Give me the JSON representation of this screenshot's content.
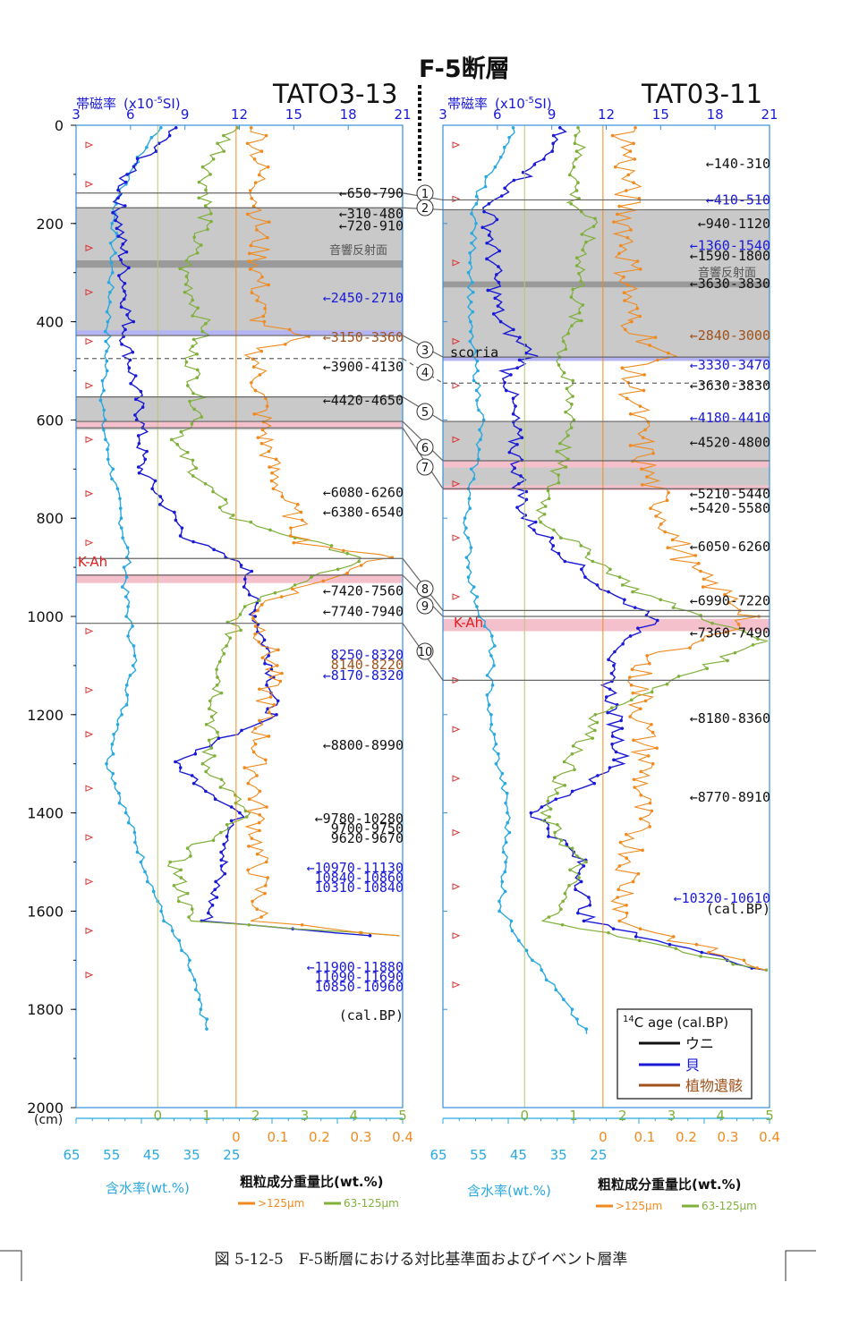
{
  "fault_title": "F-5断層",
  "cores": [
    {
      "name": "TATO3-13",
      "reflector_label": "音響反射面",
      "kah_label": "K-Ah",
      "ages": [
        {
          "text": "←310-480",
          "color": "#111111",
          "depth": 180
        },
        {
          "text": "←650-790",
          "color": "#111111",
          "depth": 138
        },
        {
          "text": "←720-910",
          "color": "#111111",
          "depth": 205
        },
        {
          "text": "←2450-2710",
          "color": "#1a1ad6",
          "depth": 352
        },
        {
          "text": "←3150-3360",
          "color": "#a0521c",
          "depth": 432
        },
        {
          "text": "←3900-4130",
          "color": "#111111",
          "depth": 492
        },
        {
          "text": "←4420-4650",
          "color": "#111111",
          "depth": 560
        },
        {
          "text": "←6080-6260",
          "color": "#111111",
          "depth": 748
        },
        {
          "text": "←6380-6540",
          "color": "#111111",
          "depth": 788
        },
        {
          "text": "←7420-7560",
          "color": "#111111",
          "depth": 948
        },
        {
          "text": "←7740-7940",
          "color": "#111111",
          "depth": 990
        },
        {
          "text": "8250-8320",
          "color": "#1a1ad6",
          "depth": 1078
        },
        {
          "text": "8140-8220",
          "color": "#a0521c",
          "depth": 1098
        },
        {
          "text": "←8170-8320",
          "color": "#1a1ad6",
          "depth": 1120
        },
        {
          "text": "←8800-8990",
          "color": "#111111",
          "depth": 1262
        },
        {
          "text": "←9780-10280",
          "color": "#111111",
          "depth": 1412
        },
        {
          "text": "9700-9750",
          "color": "#111111",
          "depth": 1432
        },
        {
          "text": "9620-9670",
          "color": "#111111",
          "depth": 1452
        },
        {
          "text": "←10970-11130",
          "color": "#1a1ad6",
          "depth": 1512
        },
        {
          "text": "10840-10860",
          "color": "#1a1ad6",
          "depth": 1532
        },
        {
          "text": "10310-10840",
          "color": "#1a1ad6",
          "depth": 1552
        },
        {
          "text": "←11900-11880",
          "color": "#1a1ad6",
          "depth": 1714
        },
        {
          "text": "11090-11690",
          "color": "#1a1ad6",
          "depth": 1734
        },
        {
          "text": "10850-10960",
          "color": "#1a1ad6",
          "depth": 1754
        },
        {
          "text": "(cal.BP)",
          "color": "#111111",
          "depth": 1812
        }
      ]
    },
    {
      "name": "TAT03-11",
      "reflector_label": "音響反射面",
      "kah_label": "K-Ah",
      "scoria_label": "scoria",
      "ages": [
        {
          "text": "←140-310",
          "color": "#111111",
          "depth": 78
        },
        {
          "text": "←410-510",
          "color": "#1a1ad6",
          "depth": 152
        },
        {
          "text": "←940-1120",
          "color": "#111111",
          "depth": 200
        },
        {
          "text": "←1360-1540",
          "color": "#1a1ad6",
          "depth": 245
        },
        {
          "text": "←1590-1800",
          "color": "#111111",
          "depth": 266
        },
        {
          "text": "←3630-3830",
          "color": "#111111",
          "depth": 322
        },
        {
          "text": "←2840-3000",
          "color": "#a0521c",
          "depth": 428
        },
        {
          "text": "←3330-3470",
          "color": "#1a1ad6",
          "depth": 488
        },
        {
          "text": "←3630-3830",
          "color": "#111111",
          "depth": 530
        },
        {
          "text": "←4180-4410",
          "color": "#1a1ad6",
          "depth": 596
        },
        {
          "text": "←4520-4800",
          "color": "#111111",
          "depth": 646
        },
        {
          "text": "←5210-5440",
          "color": "#111111",
          "depth": 750
        },
        {
          "text": "←5420-5580",
          "color": "#111111",
          "depth": 780
        },
        {
          "text": "←6050-6260",
          "color": "#111111",
          "depth": 858
        },
        {
          "text": "←6990-7220",
          "color": "#111111",
          "depth": 968
        },
        {
          "text": "←7360-7490",
          "color": "#111111",
          "depth": 1034
        },
        {
          "text": "←8180-8360",
          "color": "#111111",
          "depth": 1208
        },
        {
          "text": "←8770-8910",
          "color": "#111111",
          "depth": 1368
        },
        {
          "text": "←10320-10610",
          "color": "#1a1ad6",
          "depth": 1574
        },
        {
          "text": "(cal.BP)",
          "color": "#111111",
          "depth": 1596
        }
      ]
    }
  ],
  "top_axis": {
    "label": "帯磁率",
    "unit": "(x10",
    "unit_sup": "-5",
    "unit_end": "SI)",
    "ticks": [
      "3",
      "6",
      "9",
      "12",
      "15",
      "18",
      "21"
    ],
    "color": "#1a1ad6"
  },
  "depth_axis": {
    "ticks": [
      "0",
      "200",
      "400",
      "600",
      "800",
      "1000",
      "1200",
      "1400",
      "1600",
      "1800",
      "2000"
    ],
    "unit": "(cm)"
  },
  "bottom_axes": {
    "coarse_ticks_green": [
      "0",
      "1",
      "2",
      "3",
      "4",
      "5"
    ],
    "coarse_ticks_orange": [
      "0",
      "0.1",
      "0.2",
      "0.3",
      "0.4"
    ],
    "water_ticks": [
      "65",
      "55",
      "45",
      "35",
      "25"
    ],
    "water_label": "含水率(wt.%)",
    "coarse_label": "粗粒成分重量比(wt.%)",
    "legend_orange": ">125μm",
    "legend_green": "63-125μm"
  },
  "markers": [
    "①",
    "②",
    "③",
    "④",
    "⑤",
    "⑥",
    "⑦",
    "⑧",
    "⑨",
    "⑩"
  ],
  "c14_legend": {
    "title_sup": "14",
    "title": "C age (cal.BP)",
    "items": [
      {
        "label": "ウニ",
        "color": "#111111"
      },
      {
        "label": "貝",
        "color": "#1a1ad6"
      },
      {
        "label": "植物遺骸",
        "color": "#a0521c"
      }
    ]
  },
  "colors": {
    "susceptibility": "#1a1ad6",
    "water": "#29a9e0",
    "coarse_large": "#f08a1e",
    "coarse_fine": "#7fb03a",
    "gray_band": "#c9c9c9",
    "pink_band": "#f4c0cc",
    "axis_blue": "#3a8fd8",
    "axis_orange": "#f08a1e"
  },
  "figure_caption": "図 5-12-5　F-5断層における対比基準面およびイベント層準"
}
